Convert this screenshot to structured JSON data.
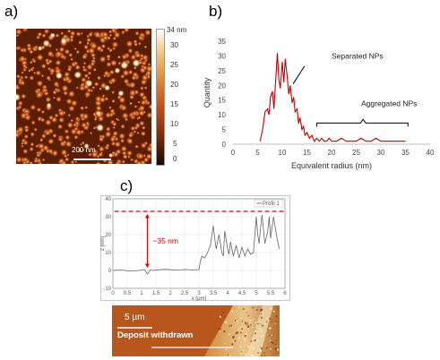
{
  "panels": {
    "a": {
      "label": "a)",
      "scale_bar": "200 nm",
      "colorbar": {
        "max_label": "34 nm",
        "ticks": [
          "30",
          "25",
          "20",
          "15",
          "10",
          "5",
          "0"
        ]
      }
    },
    "b": {
      "label": "b)"
    },
    "c": {
      "label": "c)",
      "height_annotation": "~35 nm",
      "legend": "Profil 1",
      "image_scale_bar": "5 µm",
      "image_caption": "Deposit withdrawn"
    }
  },
  "chart_data": [
    {
      "type": "line",
      "xlabel": "Equivalent radius (nm)",
      "ylabel": "Quantity",
      "xlim": [
        0,
        40
      ],
      "ylim": [
        0,
        35
      ],
      "xticks": [
        "0",
        "5",
        "10",
        "15",
        "20",
        "25",
        "30",
        "35",
        "40"
      ],
      "yticks": [
        "0",
        "5",
        "10",
        "15",
        "20",
        "25",
        "30",
        "35"
      ],
      "grid": false,
      "color": "#c00000",
      "x": [
        5.5,
        6,
        6.5,
        7,
        7.3,
        7.6,
        8,
        8.3,
        8.6,
        9,
        9.3,
        9.6,
        10,
        10.3,
        10.6,
        11,
        11.3,
        11.6,
        12,
        12.3,
        12.6,
        13,
        13.3,
        13.6,
        14,
        14.3,
        14.6,
        15,
        15.5,
        16,
        16.5,
        17,
        17.5,
        18,
        18.5,
        19,
        19.5,
        20,
        21,
        22,
        23,
        24,
        25,
        26,
        27,
        28,
        29,
        30,
        31,
        32,
        33,
        34,
        35
      ],
      "y": [
        1,
        5,
        11,
        12,
        10,
        16,
        18,
        12,
        20,
        31,
        22,
        19,
        28,
        21,
        29,
        23,
        17,
        20,
        14,
        16,
        11,
        12,
        7,
        9,
        5,
        6,
        3,
        4,
        2,
        3,
        1,
        2,
        1,
        2,
        1,
        1,
        2,
        1,
        1,
        2,
        1,
        1,
        1,
        2,
        1,
        1,
        2,
        1,
        1,
        1,
        1,
        1,
        1
      ],
      "annotations": [
        {
          "text": "Separated NPs",
          "x": 20,
          "y": 29
        },
        {
          "text": "Aggregated NPs",
          "x": 26,
          "y": 13
        }
      ]
    },
    {
      "type": "line",
      "xlabel": "x [µm]",
      "ylabel": "z [nm]",
      "xlim": [
        0,
        6
      ],
      "ylim": [
        -10,
        40
      ],
      "xticks": [
        "0",
        "0.5",
        "1",
        "1.5",
        "2",
        "2.5",
        "3",
        "3.5",
        "4",
        "4.5",
        "5",
        "5.5",
        "6"
      ],
      "yticks": [
        "-10",
        "0",
        "10",
        "20",
        "30",
        "40"
      ],
      "series": [
        {
          "name": "Profil 1"
        }
      ],
      "color": "#666666",
      "reference_line_y": 33,
      "x": [
        0,
        0.3,
        0.6,
        0.9,
        1.1,
        1.2,
        1.3,
        1.4,
        1.6,
        1.9,
        2.2,
        2.5,
        2.8,
        3.0,
        3.05,
        3.1,
        3.2,
        3.3,
        3.4,
        3.5,
        3.55,
        3.6,
        3.7,
        3.8,
        3.85,
        3.9,
        4.0,
        4.05,
        4.1,
        4.2,
        4.3,
        4.4,
        4.5,
        4.6,
        4.7,
        4.8,
        4.9,
        5.0,
        5.05,
        5.1,
        5.15,
        5.2,
        5.3,
        5.4,
        5.45,
        5.5,
        5.6,
        5.7,
        5.8
      ],
      "y": [
        0,
        0.2,
        -0.3,
        0,
        0.5,
        -2,
        0.3,
        0,
        0.4,
        0.6,
        0.2,
        0.5,
        0.3,
        0.5,
        5,
        8,
        7,
        10,
        14,
        25,
        18,
        12,
        20,
        10,
        8,
        22,
        12,
        9,
        16,
        8,
        14,
        7,
        13,
        8,
        12,
        9,
        10,
        30,
        20,
        15,
        24,
        31,
        15,
        22,
        30,
        18,
        30,
        20,
        12
      ]
    }
  ]
}
